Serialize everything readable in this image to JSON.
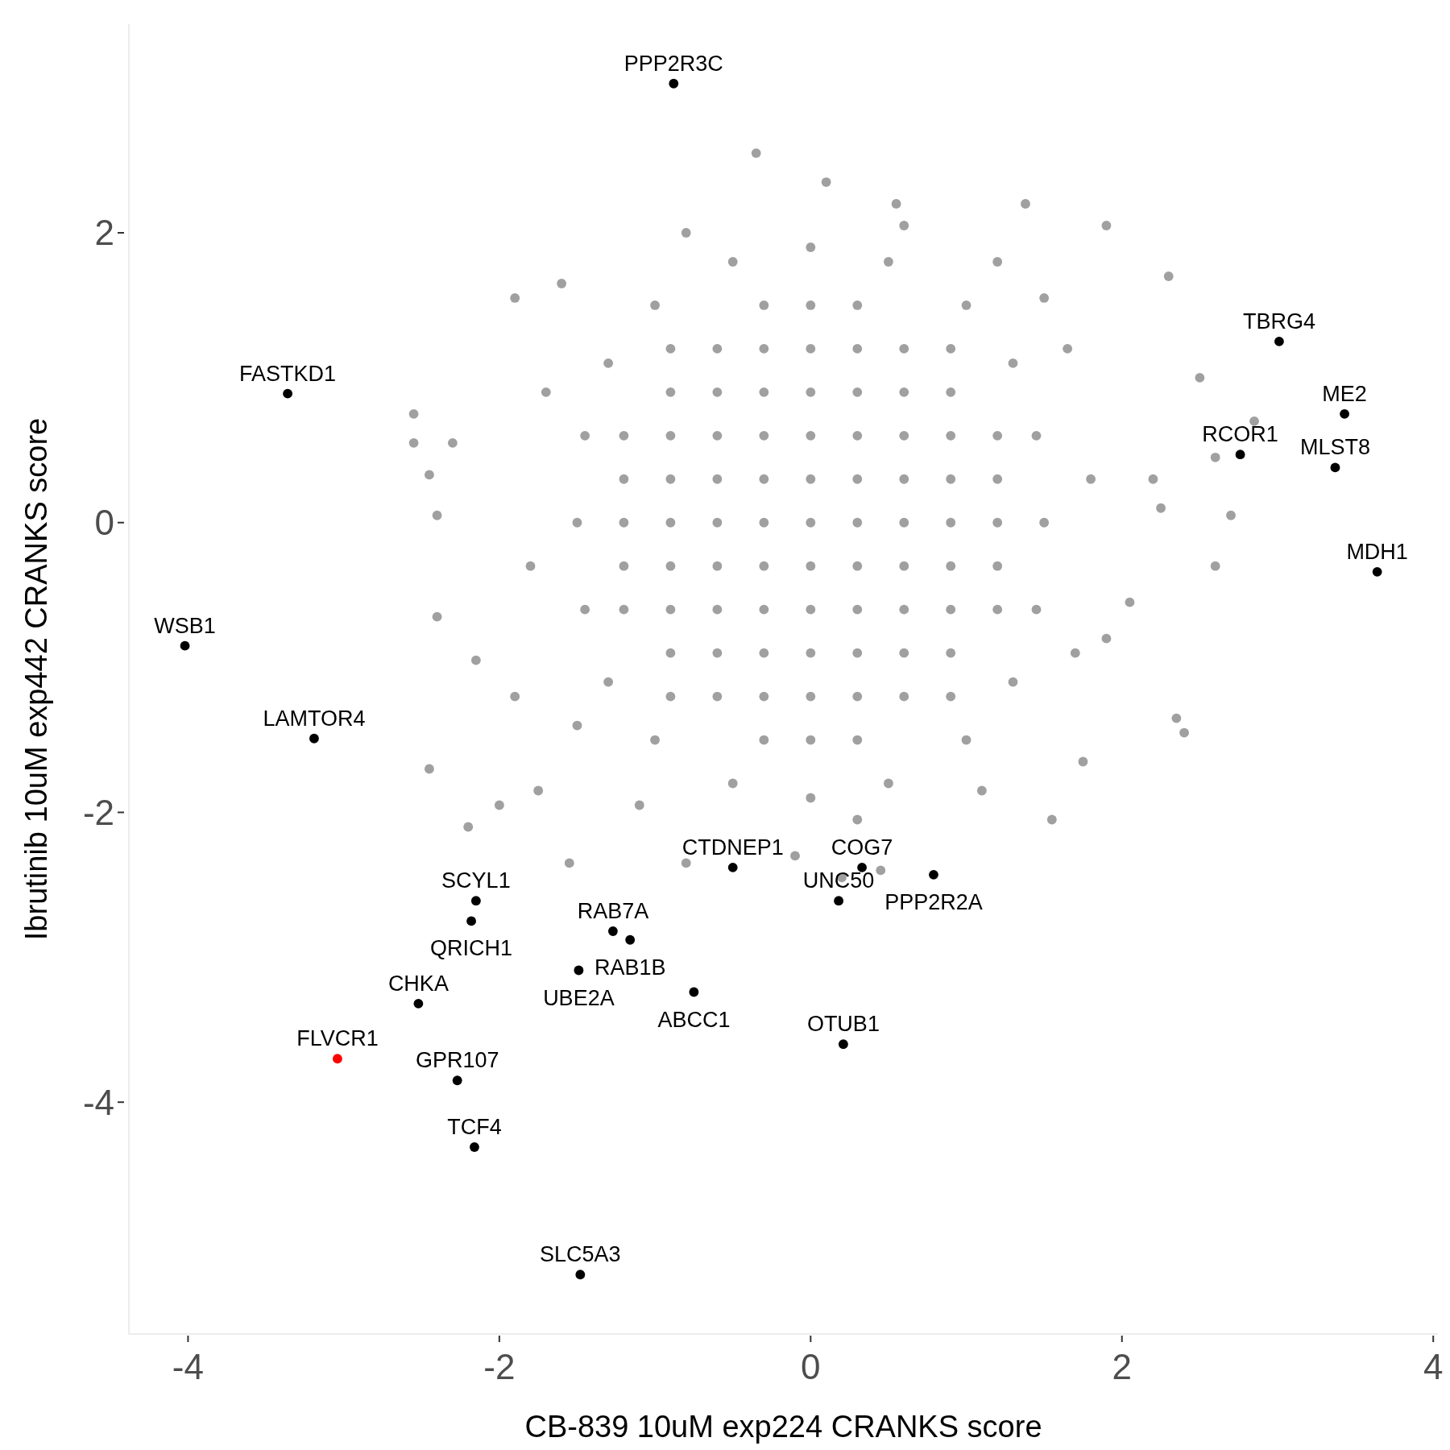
{
  "chart_data": {
    "type": "scatter",
    "xlabel": "CB-839 10uM exp224 CRANKS score",
    "ylabel": "Ibrutinib 10uM exp442 CRANKS score",
    "xlim": [
      -4.38,
      4.03
    ],
    "ylim": [
      -5.6,
      3.44
    ],
    "xticks": [
      -4,
      -2,
      0,
      2,
      4
    ],
    "yticks": [
      -4,
      -2,
      0,
      2
    ],
    "marker": "circle",
    "series": [
      {
        "color": "#a0a0a0",
        "x": [
          -2.55,
          -2.45,
          -2.4,
          -2.3,
          -2.4,
          -2.45,
          -2.15,
          -1.9,
          -2.2,
          -1.55,
          -1.9,
          -0.35,
          0.1,
          0.55,
          1.38,
          1.9,
          2.3,
          2.5,
          2.85,
          2.6,
          2.7,
          2.6,
          2.35,
          2.4,
          1.75,
          1.55,
          0.45,
          0.2,
          -0.1,
          -0.8,
          1.9,
          2.05,
          2.2,
          2.25,
          1.5,
          -1.6,
          -2.55,
          -1.75,
          -2.0,
          -0.3,
          0,
          0.3,
          -0.9,
          -0.6,
          -0.3,
          0,
          0.3,
          0.6,
          0.9,
          -0.9,
          -0.6,
          -0.3,
          0,
          0.3,
          0.6,
          0.9,
          -1.2,
          -0.9,
          -0.6,
          -0.3,
          0,
          0.3,
          0.6,
          0.9,
          1.2,
          -1.2,
          -0.9,
          -0.6,
          -0.3,
          0,
          0.3,
          0.6,
          0.9,
          1.2,
          -1.2,
          -0.9,
          -0.6,
          -0.3,
          0,
          0.3,
          0.6,
          0.9,
          1.2,
          -1.2,
          -0.9,
          -0.6,
          -0.3,
          0,
          0.3,
          0.6,
          0.9,
          1.2,
          -1.2,
          -0.9,
          -0.6,
          -0.3,
          0,
          0.3,
          0.6,
          0.9,
          1.2,
          -0.9,
          -0.6,
          -0.3,
          0,
          0.3,
          0.6,
          0.9,
          -0.9,
          -0.6,
          -0.3,
          0,
          0.3,
          0.6,
          0.9,
          -0.3,
          0,
          0.3,
          1.5,
          1.45,
          1.3,
          1.0,
          0.5,
          0,
          -0.5,
          -1.0,
          -1.3,
          -1.45,
          -1.5,
          -1.45,
          -1.3,
          -1.0,
          -0.5,
          0,
          0.5,
          1.0,
          1.3,
          1.45,
          1.8,
          1.7,
          1.2,
          -0.8,
          -1.7,
          -1.8,
          -1.5,
          0.3,
          1.1,
          -1.1,
          1.65,
          0.6
        ],
        "values": [
          0.75,
          0.33,
          0.05,
          0.55,
          -0.65,
          -1.7,
          -0.95,
          -1.2,
          -2.1,
          -2.35,
          1.55,
          2.55,
          2.35,
          2.2,
          2.2,
          2.05,
          1.7,
          1.0,
          0.7,
          0.45,
          0.05,
          -0.3,
          -1.35,
          -1.45,
          -1.65,
          -2.05,
          -2.4,
          -2.45,
          -2.3,
          -2.35,
          -0.8,
          -0.55,
          0.3,
          0.1,
          1.55,
          1.65,
          0.55,
          -1.85,
          -1.95,
          1.5,
          1.5,
          1.5,
          1.2,
          1.2,
          1.2,
          1.2,
          1.2,
          1.2,
          1.2,
          0.9,
          0.9,
          0.9,
          0.9,
          0.9,
          0.9,
          0.9,
          0.6,
          0.6,
          0.6,
          0.6,
          0.6,
          0.6,
          0.6,
          0.6,
          0.6,
          0.3,
          0.3,
          0.3,
          0.3,
          0.3,
          0.3,
          0.3,
          0.3,
          0.3,
          0,
          0,
          0,
          0,
          0,
          0,
          0,
          0,
          0,
          -0.3,
          -0.3,
          -0.3,
          -0.3,
          -0.3,
          -0.3,
          -0.3,
          -0.3,
          -0.3,
          -0.6,
          -0.6,
          -0.6,
          -0.6,
          -0.6,
          -0.6,
          -0.6,
          -0.6,
          -0.6,
          -0.9,
          -0.9,
          -0.9,
          -0.9,
          -0.9,
          -0.9,
          -0.9,
          -1.2,
          -1.2,
          -1.2,
          -1.2,
          -1.2,
          -1.2,
          -1.2,
          -1.5,
          -1.5,
          -1.5,
          0,
          0.6,
          1.1,
          1.5,
          1.8,
          1.9,
          1.8,
          1.5,
          1.1,
          0.6,
          0,
          -0.6,
          -1.1,
          -1.5,
          -1.8,
          -1.9,
          -1.8,
          -1.5,
          -1.1,
          -0.6,
          0.3,
          -0.9,
          1.8,
          2.0,
          0.9,
          -0.3,
          -1.4,
          -2.05,
          -1.85,
          -1.95,
          1.2,
          2.05
        ]
      },
      {
        "color": "#000000",
        "x": [
          -0.88,
          -3.36,
          3.01,
          2.76,
          3.43,
          3.37,
          3.64,
          -4.02,
          -3.19,
          -0.5,
          0.33,
          0.79,
          -2.15,
          0.18,
          -2.18,
          -1.27,
          -1.16,
          -1.49,
          -0.75,
          -2.52,
          0.21,
          -2.27,
          -2.16,
          -1.48
        ],
        "values": [
          3.03,
          0.89,
          1.25,
          0.47,
          0.75,
          0.38,
          -0.34,
          -0.85,
          -1.49,
          -2.38,
          -2.38,
          -2.43,
          -2.61,
          -2.61,
          -2.75,
          -2.82,
          -2.88,
          -3.09,
          -3.24,
          -3.32,
          -3.6,
          -3.85,
          -4.31,
          -5.19
        ]
      },
      {
        "color": "#ff0000",
        "x": [
          -3.04
        ],
        "values": [
          -3.7
        ]
      }
    ],
    "annotations": [
      {
        "text": "PPP2R3C",
        "x": -0.88,
        "y": 3.03
      },
      {
        "text": "FASTKD1",
        "x": -3.36,
        "y": 0.89
      },
      {
        "text": "TBRG4",
        "x": 3.01,
        "y": 1.25
      },
      {
        "text": "RCOR1",
        "x": 2.76,
        "y": 0.47
      },
      {
        "text": "ME2",
        "x": 3.43,
        "y": 0.75
      },
      {
        "text": "MLST8",
        "x": 3.37,
        "y": 0.38
      },
      {
        "text": "MDH1",
        "x": 3.64,
        "y": -0.34
      },
      {
        "text": "WSB1",
        "x": -4.02,
        "y": -0.85
      },
      {
        "text": "LAMTOR4",
        "x": -3.19,
        "y": -1.49
      },
      {
        "text": "CTDNEP1",
        "x": -0.5,
        "y": -2.38
      },
      {
        "text": "COG7",
        "x": 0.33,
        "y": -2.38
      },
      {
        "text": "PPP2R2A",
        "x": 0.79,
        "y": -2.43
      },
      {
        "text": "SCYL1",
        "x": -2.15,
        "y": -2.61
      },
      {
        "text": "UNC50",
        "x": 0.18,
        "y": -2.61
      },
      {
        "text": "QRICH1",
        "x": -2.18,
        "y": -2.75
      },
      {
        "text": "RAB7A",
        "x": -1.27,
        "y": -2.82
      },
      {
        "text": "RAB1B",
        "x": -1.16,
        "y": -2.88
      },
      {
        "text": "UBE2A",
        "x": -1.49,
        "y": -3.09
      },
      {
        "text": "ABCC1",
        "x": -0.75,
        "y": -3.24
      },
      {
        "text": "CHKA",
        "x": -2.52,
        "y": -3.32
      },
      {
        "text": "FLVCR1",
        "x": -3.04,
        "y": -3.7
      },
      {
        "text": "OTUB1",
        "x": 0.21,
        "y": -3.6
      },
      {
        "text": "GPR107",
        "x": -2.27,
        "y": -3.85
      },
      {
        "text": "TCF4",
        "x": -2.16,
        "y": -4.31
      },
      {
        "text": "SLC5A3",
        "x": -1.48,
        "y": -5.19
      }
    ]
  }
}
